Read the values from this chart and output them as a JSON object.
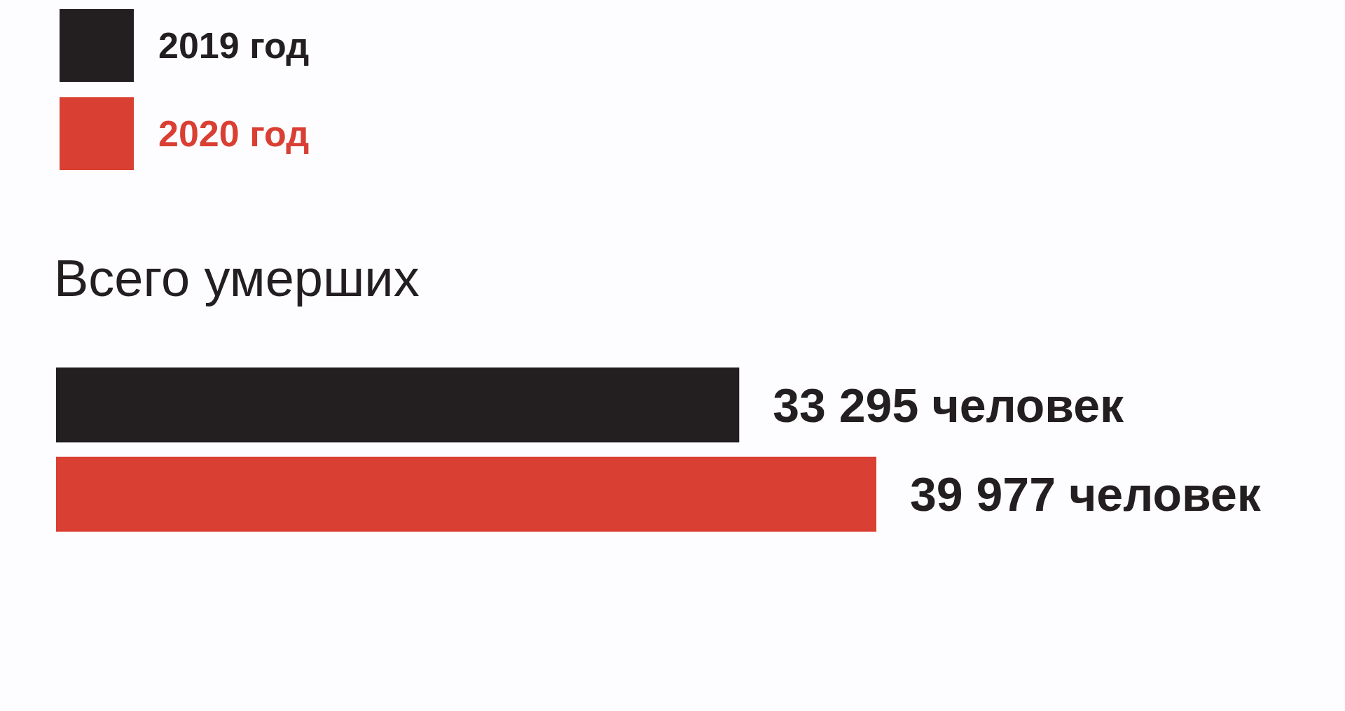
{
  "chart_data": {
    "type": "bar",
    "orientation": "horizontal",
    "title": "Всего умерших",
    "categories": [
      null
    ],
    "series": [
      {
        "name": "2019 год",
        "color": "#231f20",
        "values": [
          33295
        ],
        "value_labels": [
          "33 295 человек"
        ]
      },
      {
        "name": "2020 год",
        "color": "#d93f33",
        "values": [
          39977
        ],
        "value_labels": [
          "39 977 человек"
        ]
      }
    ],
    "legend": "top left",
    "tick_labels": false
  }
}
